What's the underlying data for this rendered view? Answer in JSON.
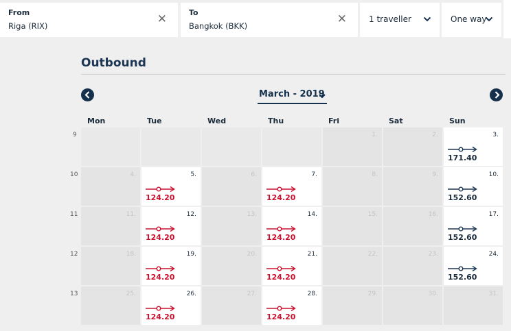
{
  "search": {
    "from": {
      "label": "From",
      "value": "Riga (RIX)",
      "clear_icon": "close-icon"
    },
    "to": {
      "label": "To",
      "value": "Bangkok (BKK)",
      "clear_icon": "close-icon"
    },
    "travellers": {
      "value": "1 traveller"
    },
    "trip_type": {
      "value": "One way"
    }
  },
  "calendar": {
    "heading": "Outbound",
    "month": "March - 2019",
    "weekdays": [
      "Mon",
      "Tue",
      "Wed",
      "Thu",
      "Fri",
      "Sat",
      "Sun"
    ],
    "weeks": [
      {
        "number": "9",
        "days": [
          {
            "day": "",
            "price": "",
            "type": "empty"
          },
          {
            "day": "",
            "price": "",
            "type": "empty"
          },
          {
            "day": "",
            "price": "",
            "type": "empty"
          },
          {
            "day": "",
            "price": "",
            "type": "empty"
          },
          {
            "day": "1.",
            "price": "",
            "type": "grey"
          },
          {
            "day": "2.",
            "price": "",
            "type": "grey"
          },
          {
            "day": "3.",
            "price": "171.40",
            "type": "navy"
          }
        ]
      },
      {
        "number": "10",
        "days": [
          {
            "day": "4.",
            "price": "",
            "type": "grey"
          },
          {
            "day": "5.",
            "price": "124.20",
            "type": "red"
          },
          {
            "day": "6.",
            "price": "",
            "type": "grey"
          },
          {
            "day": "7.",
            "price": "124.20",
            "type": "red"
          },
          {
            "day": "8.",
            "price": "",
            "type": "grey"
          },
          {
            "day": "9.",
            "price": "",
            "type": "grey"
          },
          {
            "day": "10.",
            "price": "152.60",
            "type": "navy"
          }
        ]
      },
      {
        "number": "11",
        "days": [
          {
            "day": "11.",
            "price": "",
            "type": "grey"
          },
          {
            "day": "12.",
            "price": "124.20",
            "type": "red"
          },
          {
            "day": "13.",
            "price": "",
            "type": "grey"
          },
          {
            "day": "14.",
            "price": "124.20",
            "type": "red"
          },
          {
            "day": "15.",
            "price": "",
            "type": "grey"
          },
          {
            "day": "16.",
            "price": "",
            "type": "grey"
          },
          {
            "day": "17.",
            "price": "152.60",
            "type": "navy"
          }
        ]
      },
      {
        "number": "12",
        "days": [
          {
            "day": "18.",
            "price": "",
            "type": "grey"
          },
          {
            "day": "19.",
            "price": "124.20",
            "type": "red"
          },
          {
            "day": "20.",
            "price": "",
            "type": "grey"
          },
          {
            "day": "21.",
            "price": "124.20",
            "type": "red"
          },
          {
            "day": "22.",
            "price": "",
            "type": "grey"
          },
          {
            "day": "23.",
            "price": "",
            "type": "grey"
          },
          {
            "day": "24.",
            "price": "152.60",
            "type": "navy"
          }
        ]
      },
      {
        "number": "13",
        "days": [
          {
            "day": "25.",
            "price": "",
            "type": "grey"
          },
          {
            "day": "26.",
            "price": "124.20",
            "type": "red"
          },
          {
            "day": "27.",
            "price": "",
            "type": "grey"
          },
          {
            "day": "28.",
            "price": "124.20",
            "type": "red"
          },
          {
            "day": "29.",
            "price": "",
            "type": "grey"
          },
          {
            "day": "30.",
            "price": "",
            "type": "grey"
          },
          {
            "day": "31.",
            "price": "",
            "type": "grey"
          }
        ]
      }
    ]
  },
  "colors": {
    "navy": "#1b3552",
    "red": "#c8102e",
    "cheapest": "#c8102e"
  },
  "icons": {
    "prev": "chevron-left-icon",
    "next": "chevron-right-icon",
    "flight": "direct-flight-icon"
  }
}
